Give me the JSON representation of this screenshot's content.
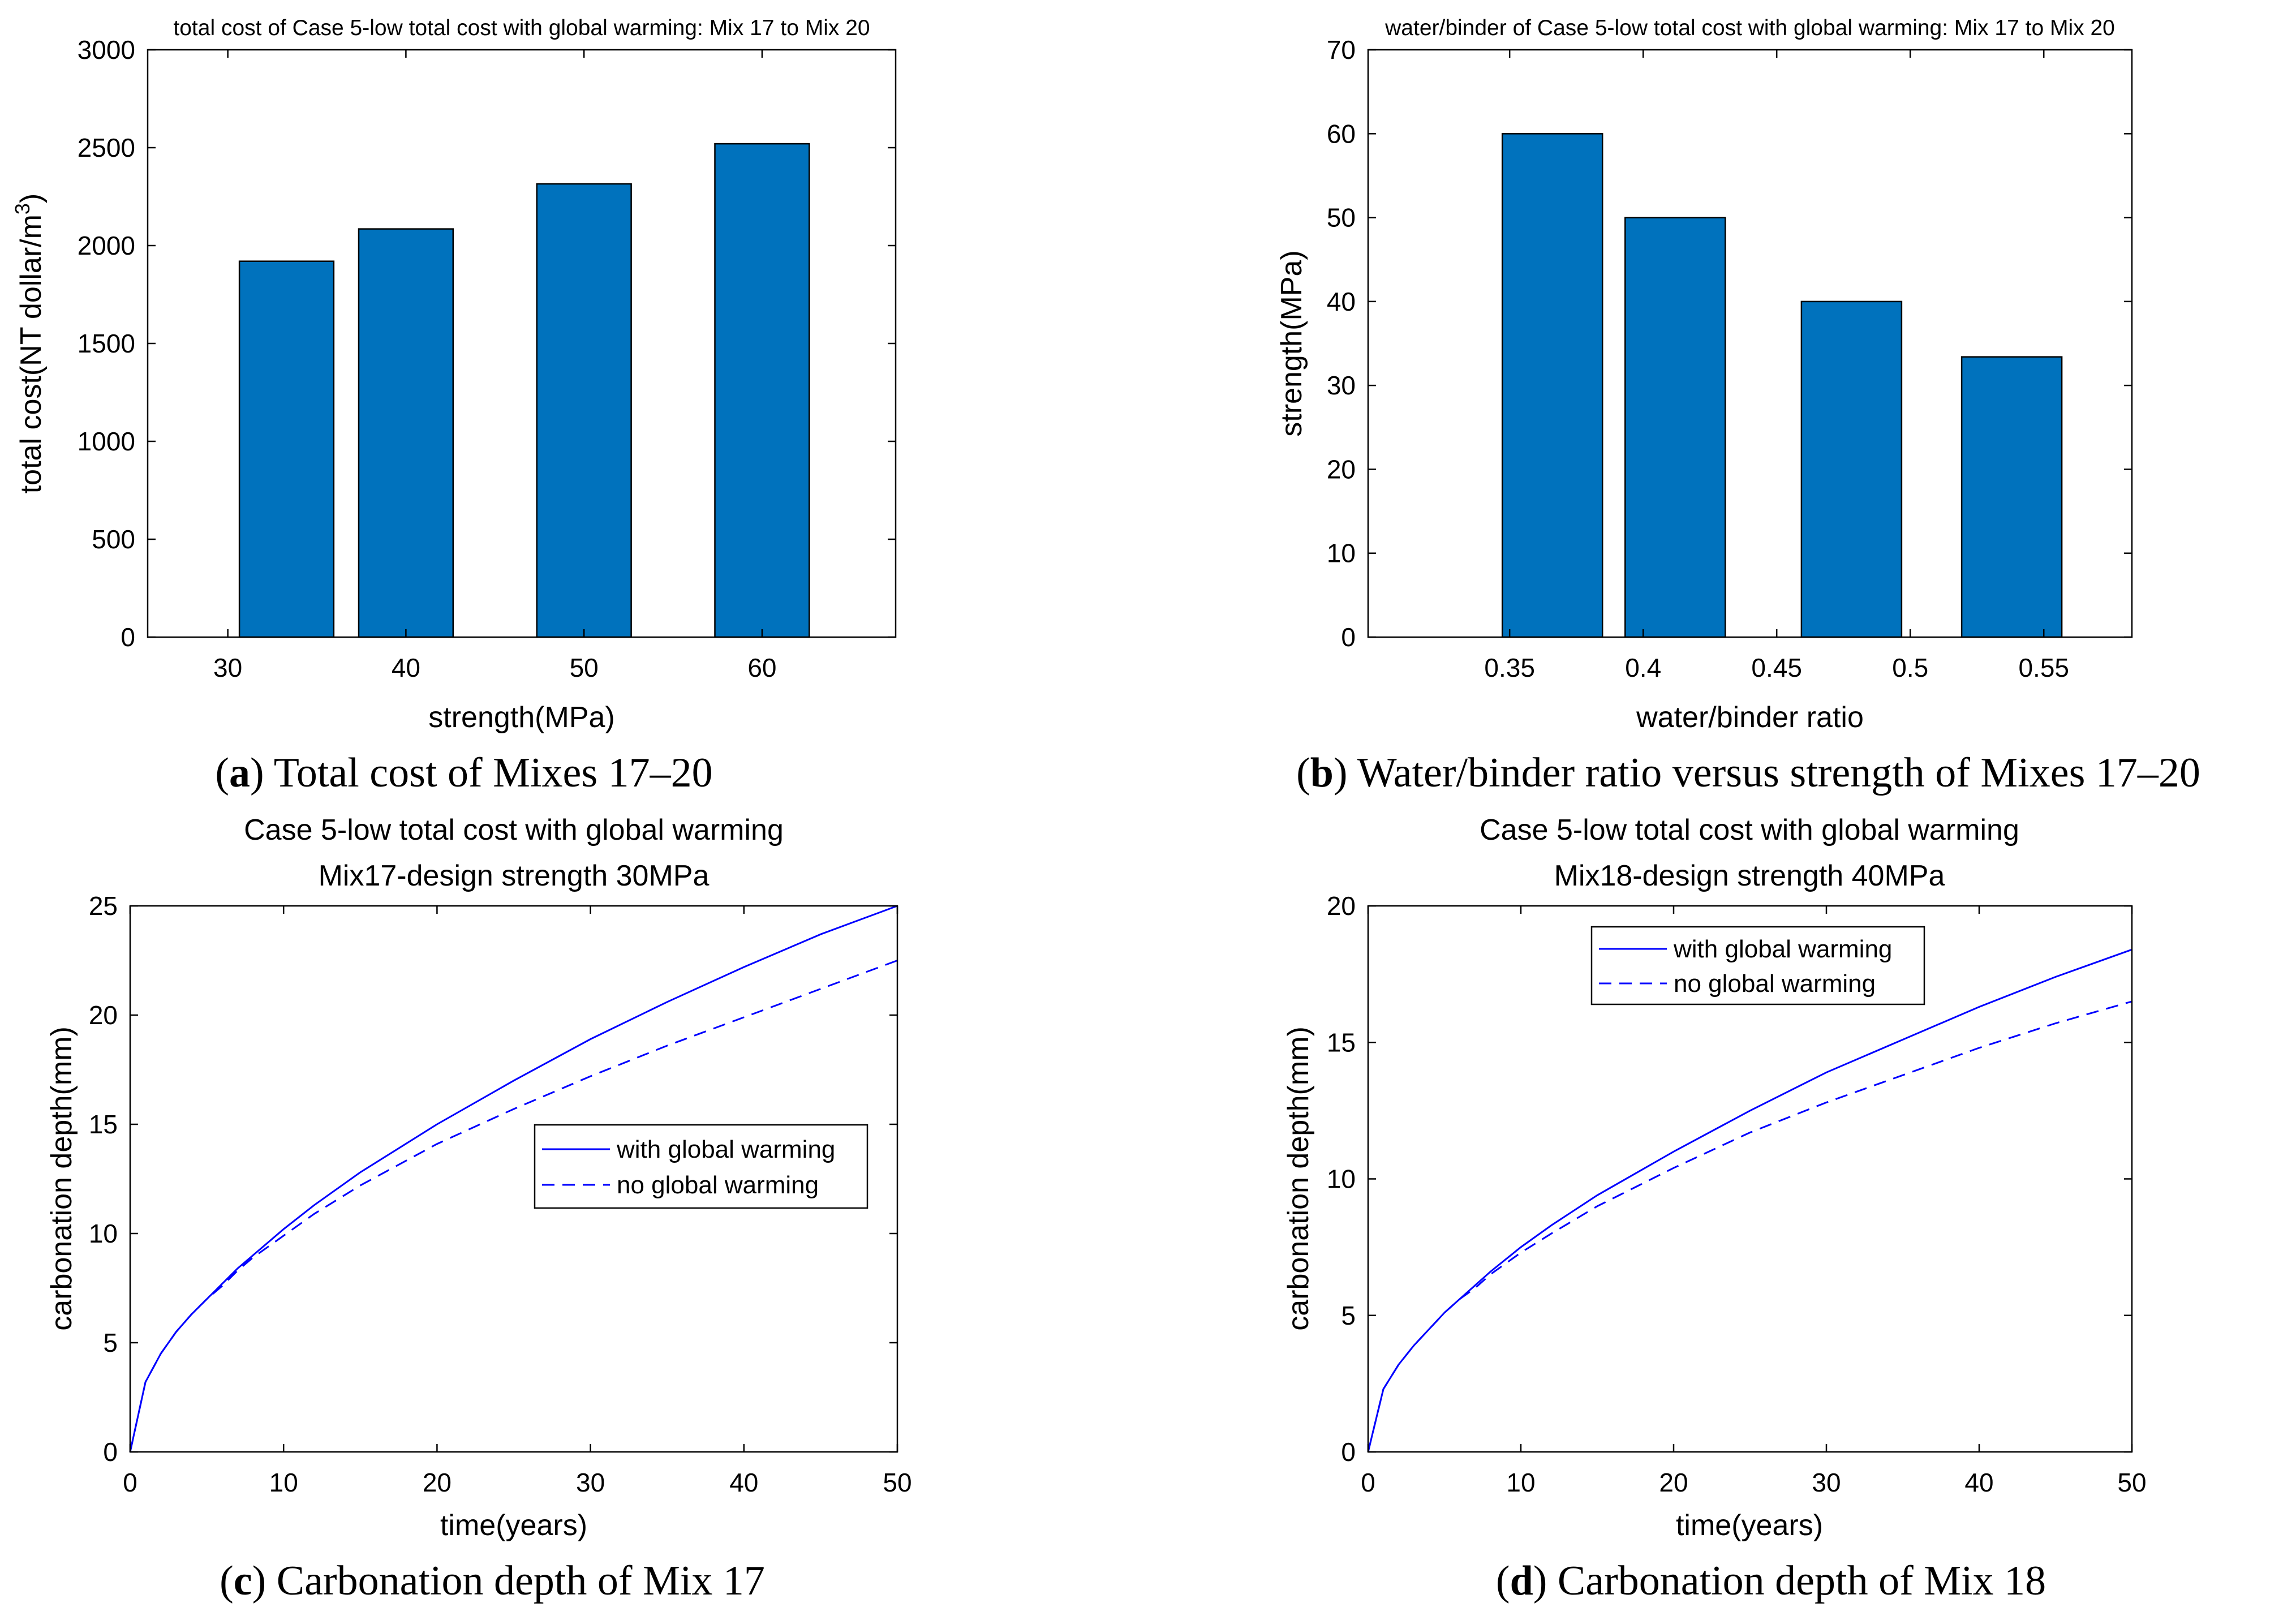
{
  "chart_data": [
    {
      "id": "a",
      "type": "bar",
      "title": "total cost of Case 5-low total cost with global warming: Mix 17 to Mix 20",
      "xlabel": "strength(MPa)",
      "ylabel_main": "total cost(NT dollar/m",
      "ylabel_sup": "3",
      "ylabel_end": ")",
      "xlim": [
        25.5,
        67.5
      ],
      "ylim": [
        0,
        3000
      ],
      "xticks": [
        30,
        40,
        50,
        60
      ],
      "xtick_labels": [
        "30",
        "40",
        "50",
        "60"
      ],
      "yticks": [
        0,
        500,
        1000,
        1500,
        2000,
        2500,
        3000
      ],
      "ytick_labels": [
        "0",
        "500",
        "1000",
        "1500",
        "2000",
        "2500",
        "3000"
      ],
      "x": [
        33.3,
        40,
        50,
        60
      ],
      "values": [
        1920,
        2085,
        2315,
        2520
      ],
      "bar_width": 5.3,
      "caption_letter": "a",
      "caption_text": ") Total cost of Mixes 17–20"
    },
    {
      "id": "b",
      "type": "bar",
      "title": "water/binder of Case 5-low total cost with global warming: Mix 17 to Mix 20",
      "xlabel": "water/binder ratio",
      "ylabel": "strength(MPa)",
      "xlim": [
        0.297,
        0.583
      ],
      "ylim": [
        0,
        70
      ],
      "xticks": [
        0.35,
        0.4,
        0.45,
        0.5,
        0.55
      ],
      "xtick_labels": [
        "0.35",
        "0.4",
        "0.45",
        "0.5",
        "0.55"
      ],
      "yticks": [
        0,
        10,
        20,
        30,
        40,
        50,
        60,
        70
      ],
      "ytick_labels": [
        "0",
        "10",
        "20",
        "30",
        "40",
        "50",
        "60",
        "70"
      ],
      "x": [
        0.366,
        0.412,
        0.478,
        0.538
      ],
      "values": [
        60,
        50,
        40,
        33.4
      ],
      "bar_width": 0.0375,
      "caption_letter": "b",
      "caption_text": ") Water/binder ratio versus strength of Mixes 17–20"
    },
    {
      "id": "c",
      "type": "line",
      "title_line1": "Case 5-low total cost with global warming",
      "title_line2": "Mix17-design strength 30MPa",
      "xlabel": "time(years)",
      "ylabel": "carbonation depth(mm)",
      "xlim": [
        0,
        50
      ],
      "ylim": [
        0,
        25
      ],
      "xticks": [
        0,
        10,
        20,
        30,
        40,
        50
      ],
      "xtick_labels": [
        "0",
        "10",
        "20",
        "30",
        "40",
        "50"
      ],
      "yticks": [
        0,
        5,
        10,
        15,
        20,
        25
      ],
      "ytick_labels": [
        "0",
        "5",
        "10",
        "15",
        "20",
        "25"
      ],
      "legend_position": "center-right",
      "series": [
        {
          "name": "with global warming",
          "style": "solid",
          "x": [
            0,
            1,
            2,
            3,
            4,
            5,
            6,
            7,
            8,
            10,
            12,
            15,
            20,
            25,
            30,
            35,
            40,
            45,
            50
          ],
          "values": [
            0,
            3.2,
            4.5,
            5.5,
            6.3,
            7.0,
            7.7,
            8.4,
            9.0,
            10.2,
            11.3,
            12.8,
            15.0,
            17.0,
            18.9,
            20.6,
            22.2,
            23.7,
            25.0
          ]
        },
        {
          "name": "no global warming",
          "style": "dashed",
          "x": [
            0,
            1,
            2,
            3,
            4,
            5,
            6,
            7,
            8,
            10,
            12,
            15,
            20,
            25,
            30,
            35,
            40,
            45,
            50
          ],
          "values": [
            0,
            3.2,
            4.5,
            5.5,
            6.3,
            7.0,
            7.6,
            8.3,
            8.9,
            9.9,
            10.9,
            12.2,
            14.1,
            15.7,
            17.2,
            18.6,
            19.9,
            21.2,
            22.5
          ]
        }
      ],
      "caption_letter": "c",
      "caption_text": ") Carbonation depth of Mix 17"
    },
    {
      "id": "d",
      "type": "line",
      "title_line1": "Case 5-low total cost with global warming",
      "title_line2": "Mix18-design strength 40MPa",
      "xlabel": "time(years)",
      "ylabel": "carbonation depth(mm)",
      "xlim": [
        0,
        50
      ],
      "ylim": [
        0,
        20
      ],
      "xticks": [
        0,
        10,
        20,
        30,
        40,
        50
      ],
      "xtick_labels": [
        "0",
        "10",
        "20",
        "30",
        "40",
        "50"
      ],
      "yticks": [
        0,
        5,
        10,
        15,
        20
      ],
      "ytick_labels": [
        "0",
        "5",
        "10",
        "15",
        "20"
      ],
      "legend_position": "top-center",
      "series": [
        {
          "name": "with global warming",
          "style": "solid",
          "x": [
            0,
            1,
            2,
            3,
            4,
            5,
            6,
            7,
            8,
            10,
            12,
            15,
            20,
            25,
            30,
            35,
            40,
            45,
            50
          ],
          "values": [
            0,
            2.3,
            3.2,
            3.9,
            4.5,
            5.1,
            5.6,
            6.1,
            6.6,
            7.5,
            8.3,
            9.4,
            11.0,
            12.5,
            13.9,
            15.1,
            16.3,
            17.4,
            18.4
          ]
        },
        {
          "name": "no global warming",
          "style": "dashed",
          "x": [
            0,
            1,
            2,
            3,
            4,
            5,
            6,
            7,
            8,
            10,
            12,
            15,
            20,
            25,
            30,
            35,
            40,
            45,
            50
          ],
          "values": [
            0,
            2.3,
            3.2,
            3.9,
            4.5,
            5.1,
            5.6,
            6.0,
            6.5,
            7.3,
            8.0,
            9.0,
            10.4,
            11.7,
            12.8,
            13.8,
            14.8,
            15.7,
            16.5
          ]
        }
      ],
      "caption_letter": "d",
      "caption_text": ") Carbonation depth of Mix 18"
    }
  ]
}
